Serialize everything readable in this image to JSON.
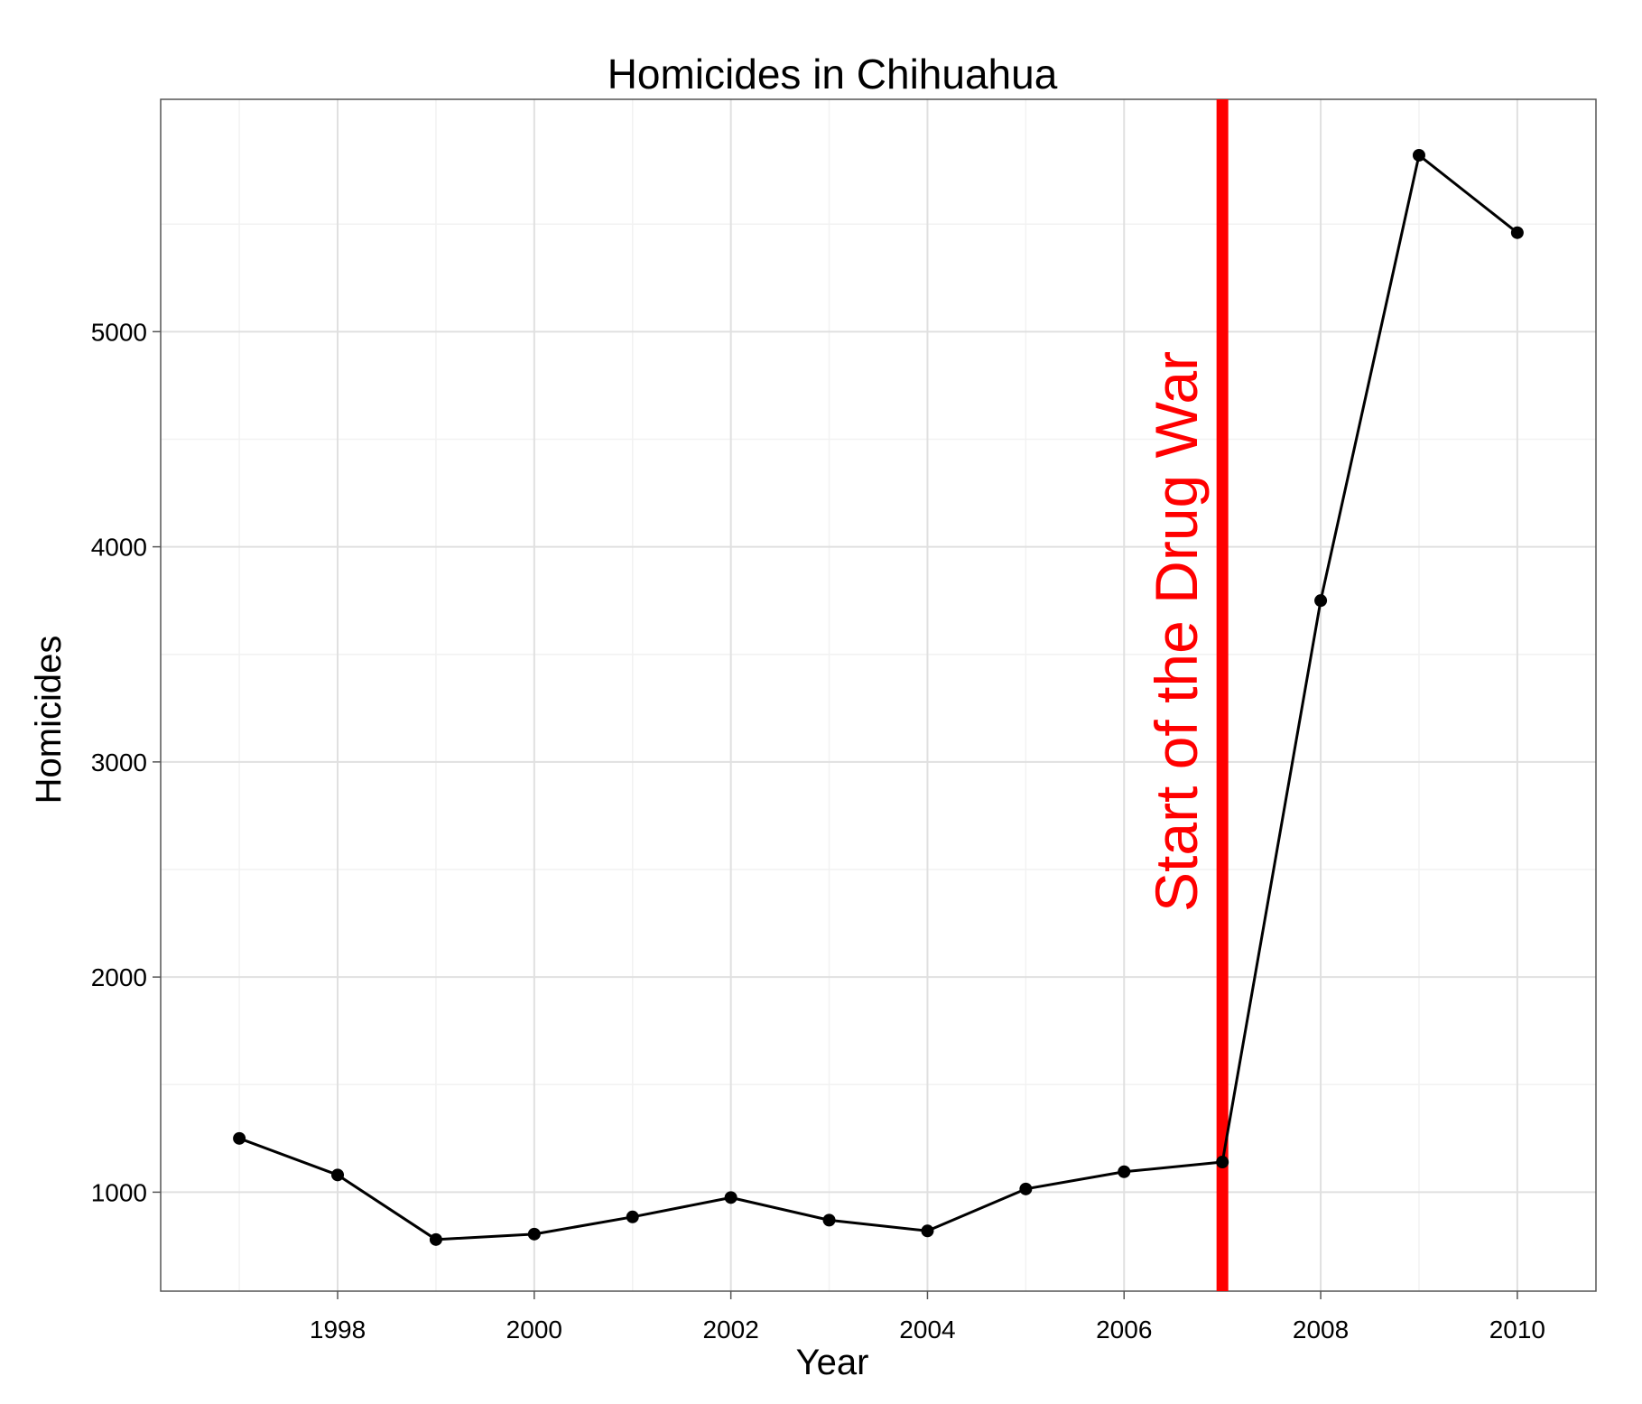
{
  "chart_data": {
    "type": "line",
    "title": "Homicides in Chihuahua",
    "xlabel": "Year",
    "ylabel": "Homicides",
    "x": [
      1997,
      1998,
      1999,
      2000,
      2001,
      2002,
      2003,
      2004,
      2005,
      2006,
      2007,
      2008,
      2009,
      2010
    ],
    "series": [
      {
        "values": [
          1250,
          1080,
          780,
          805,
          885,
          975,
          870,
          820,
          1015,
          1095,
          1140,
          3750,
          5820,
          5460
        ],
        "color": "#000000"
      }
    ],
    "xlim": [
      1996.2,
      2010.8
    ],
    "ylim": [
      540,
      6080
    ],
    "xticks": [
      1998,
      2000,
      2002,
      2004,
      2006,
      2008,
      2010
    ],
    "yticks": [
      1000,
      2000,
      3000,
      4000,
      5000
    ],
    "grid": true,
    "annotation": {
      "text": "Start of the Drug War",
      "x": 2007,
      "color": "#ff0000"
    }
  }
}
